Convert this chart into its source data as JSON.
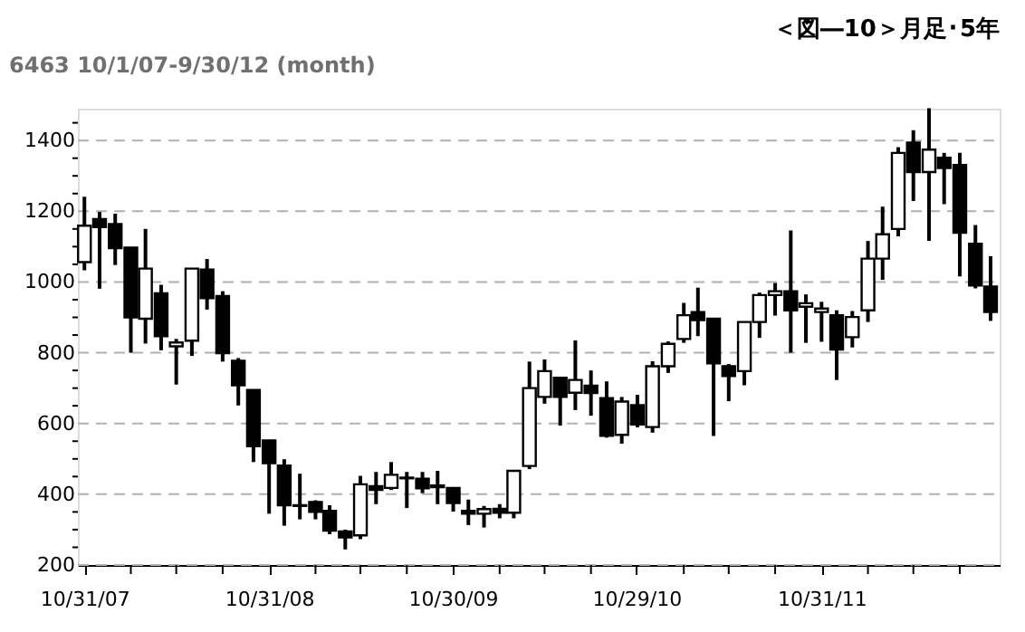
{
  "chart_data": {
    "type": "candlestick",
    "title": "＜図―10＞月足･5年",
    "subtitle": "6463 10/1/07-9/30/12 (month)",
    "x": [
      "2007-10-31",
      "2007-11-30",
      "2007-12-31",
      "2008-01-31",
      "2008-02-29",
      "2008-03-31",
      "2008-04-30",
      "2008-05-31",
      "2008-06-30",
      "2008-07-31",
      "2008-08-31",
      "2008-09-30",
      "2008-10-31",
      "2008-11-30",
      "2008-12-31",
      "2009-01-31",
      "2009-02-28",
      "2009-03-31",
      "2009-04-30",
      "2009-05-31",
      "2009-06-30",
      "2009-07-31",
      "2009-08-31",
      "2009-09-30",
      "2009-10-31",
      "2009-11-30",
      "2009-12-31",
      "2010-01-31",
      "2010-02-28",
      "2010-03-31",
      "2010-04-30",
      "2010-05-31",
      "2010-06-30",
      "2010-07-31",
      "2010-08-31",
      "2010-09-30",
      "2010-10-31",
      "2010-11-30",
      "2010-12-31",
      "2011-01-31",
      "2011-02-28",
      "2011-03-31",
      "2011-04-30",
      "2011-05-31",
      "2011-06-30",
      "2011-07-31",
      "2011-08-31",
      "2011-09-30",
      "2011-10-31",
      "2011-11-30",
      "2011-12-31",
      "2012-01-31",
      "2012-02-29",
      "2012-03-31",
      "2012-04-30",
      "2012-05-31",
      "2012-06-30",
      "2012-07-31",
      "2012-08-31",
      "2012-09-30"
    ],
    "ohlc": [
      [
        1056,
        1241,
        1033,
        1159
      ],
      [
        1178,
        1198,
        981,
        1155
      ],
      [
        1164,
        1193,
        1048,
        1096
      ],
      [
        1097,
        1097,
        800,
        900
      ],
      [
        896,
        1150,
        826,
        1038
      ],
      [
        968,
        992,
        807,
        847
      ],
      [
        818,
        839,
        710,
        829
      ],
      [
        834,
        1038,
        791,
        1038
      ],
      [
        1035,
        1065,
        922,
        954
      ],
      [
        960,
        974,
        775,
        799
      ],
      [
        777,
        785,
        651,
        708
      ],
      [
        695,
        695,
        491,
        536
      ],
      [
        552,
        552,
        345,
        488
      ],
      [
        481,
        499,
        311,
        369
      ],
      [
        367,
        458,
        329,
        369
      ],
      [
        378,
        383,
        329,
        350
      ],
      [
        353,
        369,
        287,
        297
      ],
      [
        295,
        300,
        244,
        278
      ],
      [
        284,
        452,
        273,
        428
      ],
      [
        423,
        463,
        372,
        412
      ],
      [
        418,
        491,
        412,
        455
      ],
      [
        445,
        463,
        361,
        447
      ],
      [
        444,
        463,
        403,
        417
      ],
      [
        425,
        466,
        372,
        420
      ],
      [
        418,
        418,
        351,
        375
      ],
      [
        353,
        385,
        313,
        345
      ],
      [
        345,
        367,
        306,
        358
      ],
      [
        359,
        372,
        332,
        348
      ],
      [
        348,
        466,
        332,
        466
      ],
      [
        480,
        775,
        471,
        700
      ],
      [
        675,
        781,
        656,
        748
      ],
      [
        729,
        729,
        594,
        675
      ],
      [
        687,
        835,
        638,
        723
      ],
      [
        707,
        750,
        622,
        686
      ],
      [
        672,
        719,
        560,
        565
      ],
      [
        568,
        675,
        543,
        662
      ],
      [
        652,
        681,
        589,
        597
      ],
      [
        590,
        776,
        574,
        762
      ],
      [
        762,
        832,
        743,
        825
      ],
      [
        839,
        941,
        828,
        906
      ],
      [
        915,
        984,
        847,
        892
      ],
      [
        896,
        896,
        565,
        770
      ],
      [
        762,
        768,
        663,
        734
      ],
      [
        748,
        887,
        708,
        887
      ],
      [
        887,
        970,
        842,
        963
      ],
      [
        963,
        997,
        905,
        974
      ],
      [
        974,
        1146,
        800,
        920
      ],
      [
        930,
        965,
        828,
        940
      ],
      [
        915,
        944,
        831,
        925
      ],
      [
        906,
        920,
        723,
        809
      ],
      [
        844,
        918,
        815,
        901
      ],
      [
        920,
        1116,
        887,
        1066
      ],
      [
        1066,
        1213,
        1006,
        1135
      ],
      [
        1150,
        1381,
        1129,
        1365
      ],
      [
        1394,
        1429,
        1229,
        1311
      ],
      [
        1311,
        1491,
        1116,
        1374
      ],
      [
        1351,
        1365,
        1220,
        1322
      ],
      [
        1331,
        1365,
        1016,
        1139
      ],
      [
        1108,
        1161,
        982,
        990
      ],
      [
        987,
        1073,
        890,
        915
      ]
    ],
    "xlim": [
      "2007-10-18",
      "2012-10-18"
    ],
    "xticks": [
      {
        "value": "2007-10-31",
        "label": "10/31/07"
      },
      {
        "value": "2008-01-31",
        "label": null
      },
      {
        "value": "2008-04-30",
        "label": null
      },
      {
        "value": "2008-07-31",
        "label": null
      },
      {
        "value": "2008-10-31",
        "label": "10/31/08"
      },
      {
        "value": "2009-01-31",
        "label": null
      },
      {
        "value": "2009-04-30",
        "label": null
      },
      {
        "value": "2009-07-31",
        "label": null
      },
      {
        "value": "2009-10-30",
        "label": "10/30/09"
      },
      {
        "value": "2010-01-31",
        "label": null
      },
      {
        "value": "2010-04-30",
        "label": null
      },
      {
        "value": "2010-07-31",
        "label": null
      },
      {
        "value": "2010-10-29",
        "label": "10/29/10"
      },
      {
        "value": "2011-01-31",
        "label": null
      },
      {
        "value": "2011-04-30",
        "label": null
      },
      {
        "value": "2011-07-31",
        "label": null
      },
      {
        "value": "2011-10-31",
        "label": "10/31/11"
      },
      {
        "value": "2012-01-31",
        "label": null
      },
      {
        "value": "2012-04-30",
        "label": null
      },
      {
        "value": "2012-07-31",
        "label": null
      }
    ],
    "ylim": [
      200,
      1490
    ],
    "yticks": [
      200,
      {
        "value": 250,
        "label": null
      },
      {
        "value": 300,
        "label": null
      },
      {
        "value": 350,
        "label": null
      },
      400,
      {
        "value": 450,
        "label": null
      },
      {
        "value": 500,
        "label": null
      },
      {
        "value": 550,
        "label": null
      },
      600,
      {
        "value": 650,
        "label": null
      },
      {
        "value": 700,
        "label": null
      },
      {
        "value": 750,
        "label": null
      },
      800,
      {
        "value": 850,
        "label": null
      },
      {
        "value": 900,
        "label": null
      },
      {
        "value": 950,
        "label": null
      },
      1000,
      {
        "value": 1050,
        "label": null
      },
      {
        "value": 1100,
        "label": null
      },
      {
        "value": 1150,
        "label": null
      },
      1200,
      {
        "value": 1250,
        "label": null
      },
      {
        "value": 1300,
        "label": null
      },
      {
        "value": 1350,
        "label": null
      },
      1400,
      {
        "value": 1450,
        "label": null
      }
    ],
    "grid": "y"
  }
}
